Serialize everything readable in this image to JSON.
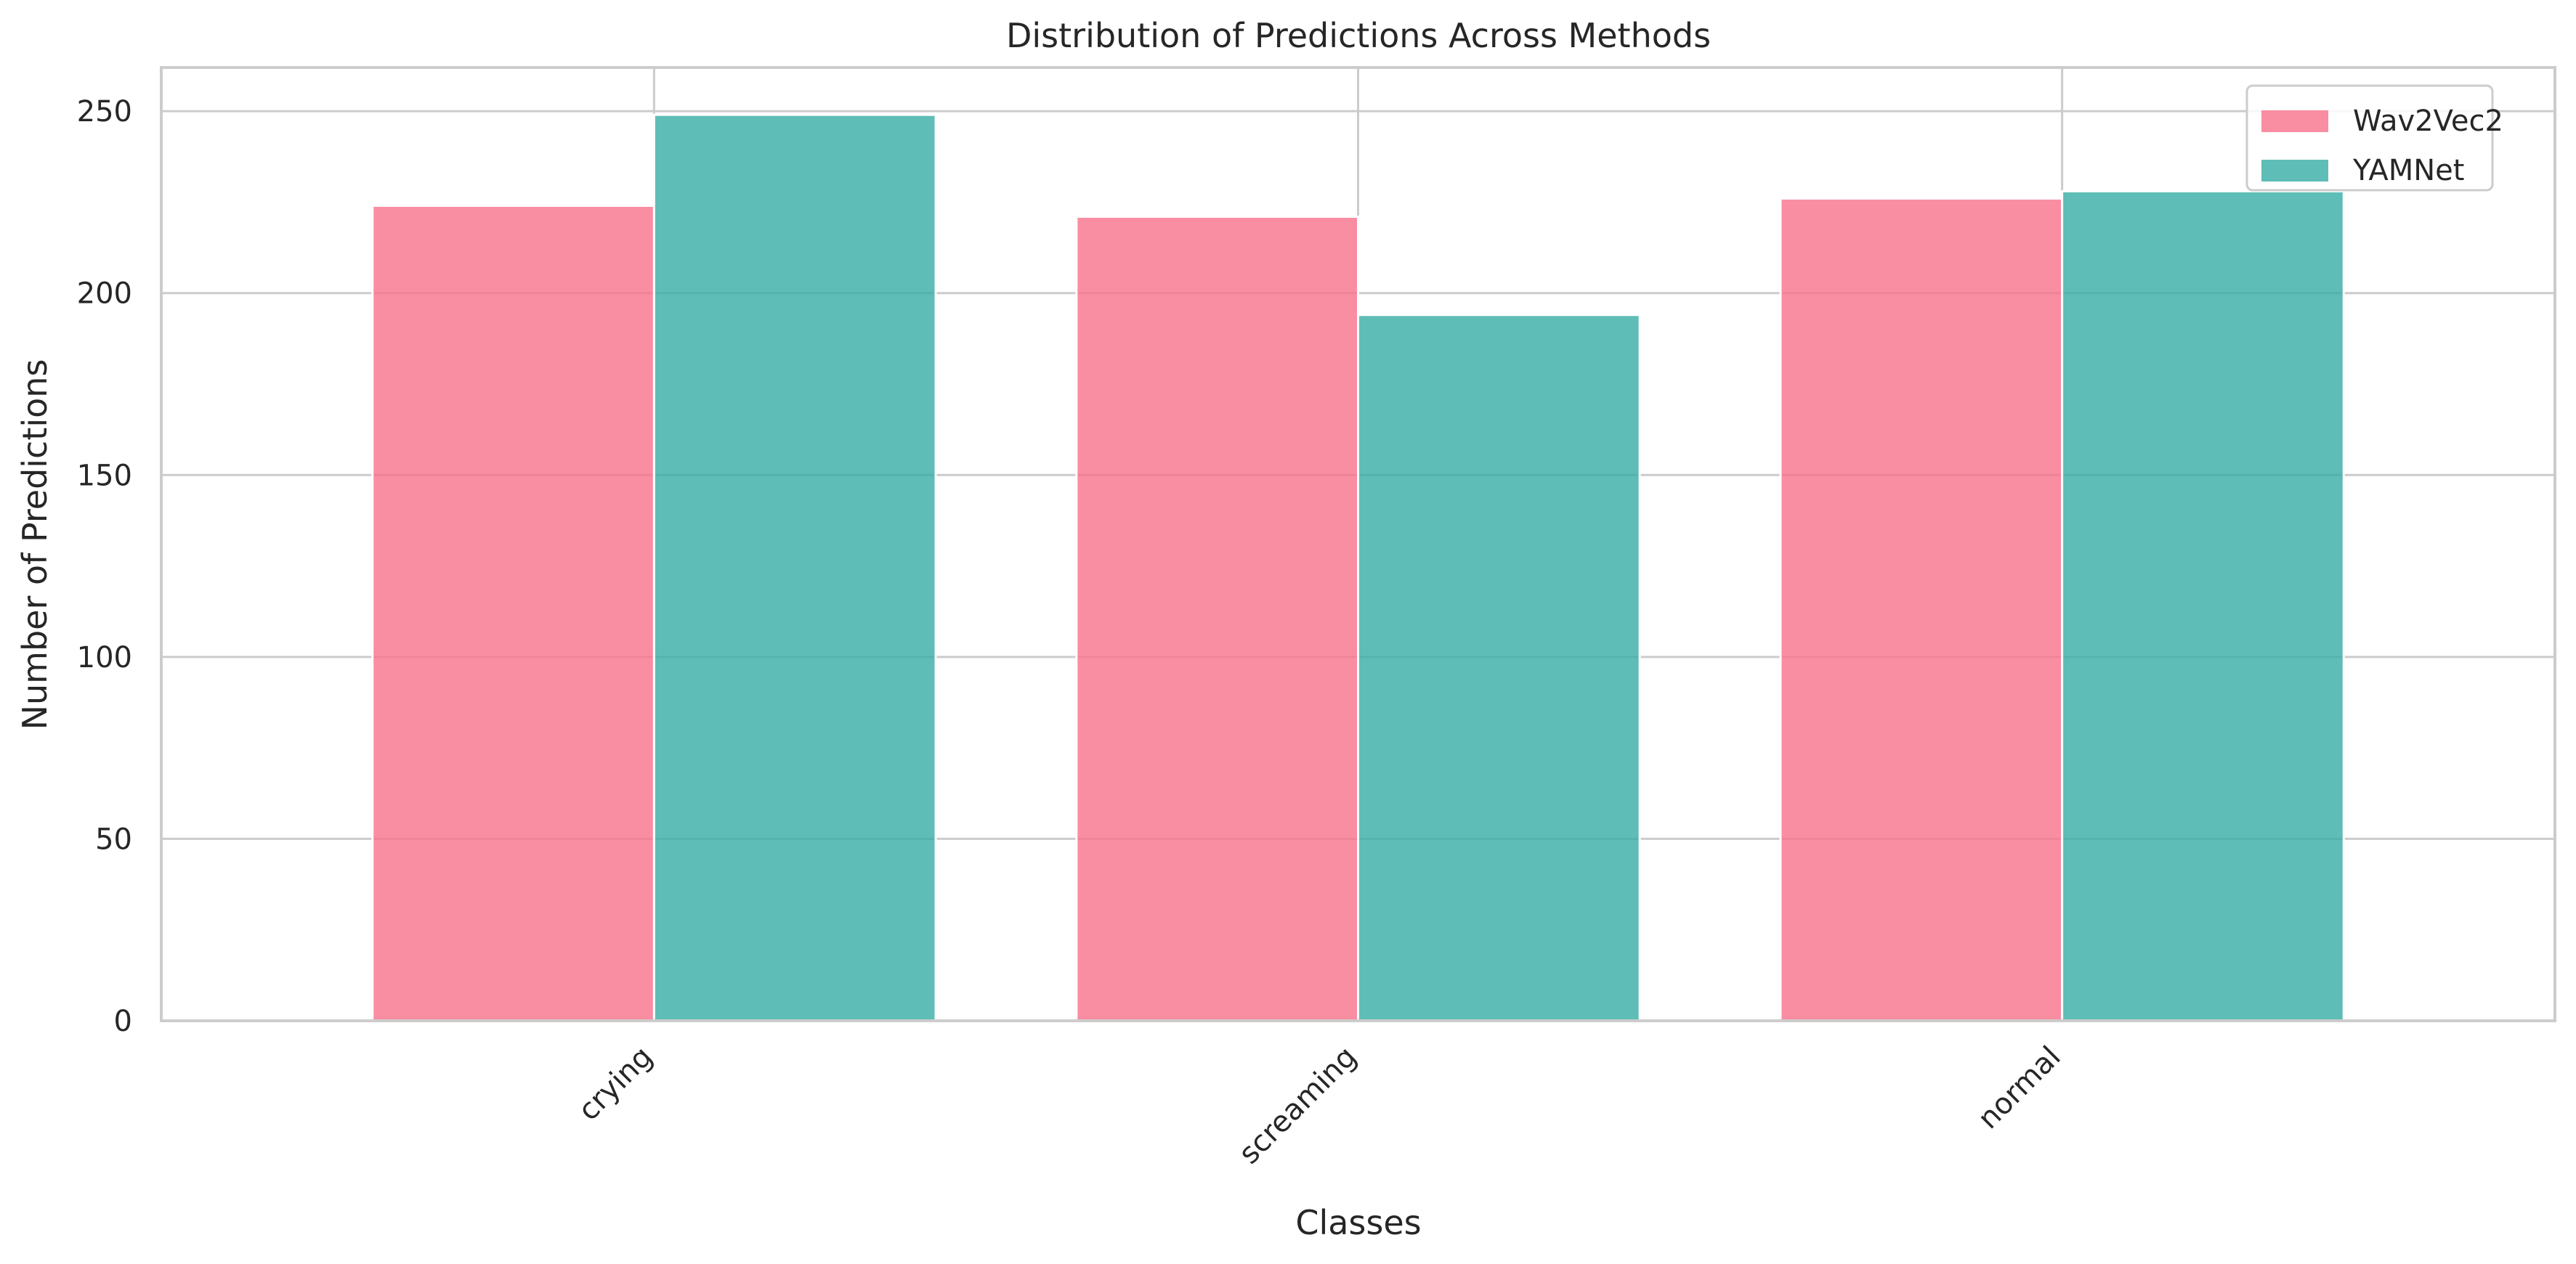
{
  "chart_data": {
    "type": "bar",
    "title": "Distribution of Predictions Across Methods",
    "xlabel": "Classes",
    "ylabel": "Number of Predictions",
    "categories": [
      "crying",
      "screaming",
      "normal"
    ],
    "series": [
      {
        "name": "Wav2Vec2",
        "values": [
          224,
          221,
          226
        ],
        "color": "#f77189"
      },
      {
        "name": "YAMNet",
        "values": [
          249,
          194,
          228
        ],
        "color": "#36ada4"
      }
    ],
    "ylim": [
      0,
      262
    ],
    "yticks": [
      0,
      50,
      100,
      150,
      200,
      250
    ],
    "grid": true,
    "legend_position": "top-right",
    "xtick_rotation": 45
  }
}
